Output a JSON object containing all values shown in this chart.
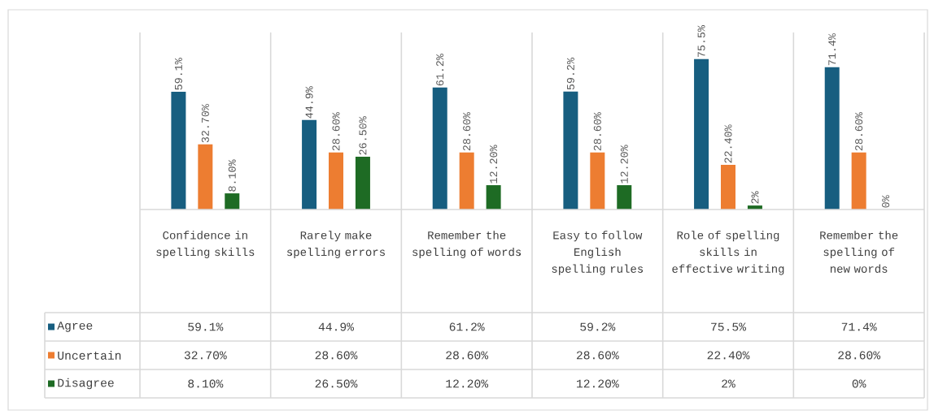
{
  "chart_data": {
    "type": "bar",
    "data_labels": true,
    "legend": "bottom left",
    "categories": [
      "Confidence in spelling skills",
      "Rarely make spelling errors",
      "Remember the spelling of words",
      "Easy to follow English spelling rules",
      "Role of spelling skills in effective writing",
      "Remember the spelling of new words"
    ],
    "series": [
      {
        "name": "Agree",
        "color": "#175e80",
        "values": [
          59.1,
          44.9,
          61.2,
          59.2,
          75.5,
          71.4
        ],
        "value_labels": [
          "59.1%",
          "44.9%",
          "61.2%",
          "59.2%",
          "75.5%",
          "71.4%"
        ]
      },
      {
        "name": "Uncertain",
        "color": "#ed7d31",
        "values": [
          32.7,
          28.6,
          28.6,
          28.6,
          22.4,
          28.6
        ],
        "value_labels": [
          "32.70%",
          "28.60%",
          "28.60%",
          "28.60%",
          "22.40%",
          "28.60%"
        ]
      },
      {
        "name": "Disagree",
        "color": "#1e6b24",
        "values": [
          8.1,
          26.5,
          12.2,
          12.2,
          2,
          0
        ],
        "value_labels": [
          "8.10%",
          "26.50%",
          "12.20%",
          "12.20%",
          "2%",
          "0%"
        ]
      }
    ]
  }
}
